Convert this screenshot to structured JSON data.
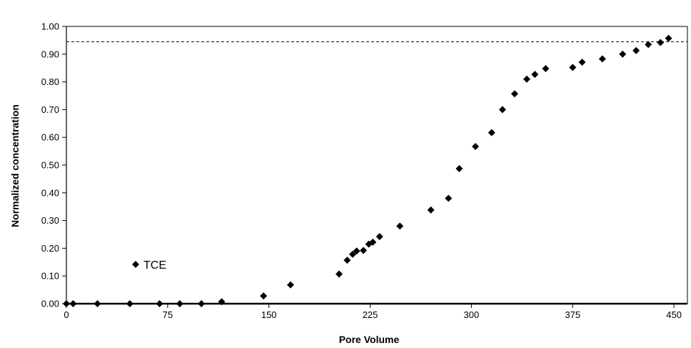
{
  "chart_data": {
    "type": "scatter",
    "title": "",
    "xlabel": "Pore Volume",
    "ylabel": "Normalized concentration",
    "xlim": [
      0,
      460
    ],
    "ylim": [
      0,
      1.0
    ],
    "x_ticks": [
      "0",
      "75",
      "150",
      "225",
      "300",
      "375",
      "450"
    ],
    "y_ticks": [
      "0.00",
      "0.10",
      "0.20",
      "0.30",
      "0.40",
      "0.50",
      "0.60",
      "0.70",
      "0.80",
      "0.90",
      "1.00"
    ],
    "grid": false,
    "legend_position": "lower-left",
    "reference_line": {
      "y": 0.945,
      "style": "dashed"
    },
    "series": [
      {
        "name": "TCE",
        "marker": "diamond",
        "color": "#000000",
        "points": [
          {
            "x": 0,
            "y": 0.0
          },
          {
            "x": 5,
            "y": 0.0
          },
          {
            "x": 23,
            "y": 0.0
          },
          {
            "x": 47,
            "y": 0.0
          },
          {
            "x": 69,
            "y": 0.0
          },
          {
            "x": 84,
            "y": 0.0
          },
          {
            "x": 100,
            "y": 0.0
          },
          {
            "x": 115,
            "y": 0.007
          },
          {
            "x": 146,
            "y": 0.028
          },
          {
            "x": 166,
            "y": 0.068
          },
          {
            "x": 202,
            "y": 0.107
          },
          {
            "x": 208,
            "y": 0.157
          },
          {
            "x": 212,
            "y": 0.178
          },
          {
            "x": 215,
            "y": 0.19
          },
          {
            "x": 220,
            "y": 0.192
          },
          {
            "x": 224,
            "y": 0.215
          },
          {
            "x": 227,
            "y": 0.222
          },
          {
            "x": 232,
            "y": 0.242
          },
          {
            "x": 247,
            "y": 0.28
          },
          {
            "x": 270,
            "y": 0.338
          },
          {
            "x": 283,
            "y": 0.38
          },
          {
            "x": 291,
            "y": 0.487
          },
          {
            "x": 303,
            "y": 0.567
          },
          {
            "x": 315,
            "y": 0.617
          },
          {
            "x": 323,
            "y": 0.7
          },
          {
            "x": 332,
            "y": 0.757
          },
          {
            "x": 341,
            "y": 0.81
          },
          {
            "x": 347,
            "y": 0.827
          },
          {
            "x": 355,
            "y": 0.848
          },
          {
            "x": 375,
            "y": 0.852
          },
          {
            "x": 382,
            "y": 0.871
          },
          {
            "x": 397,
            "y": 0.883
          },
          {
            "x": 412,
            "y": 0.9
          },
          {
            "x": 422,
            "y": 0.913
          },
          {
            "x": 431,
            "y": 0.935
          },
          {
            "x": 440,
            "y": 0.942
          },
          {
            "x": 446,
            "y": 0.957
          }
        ]
      }
    ]
  }
}
